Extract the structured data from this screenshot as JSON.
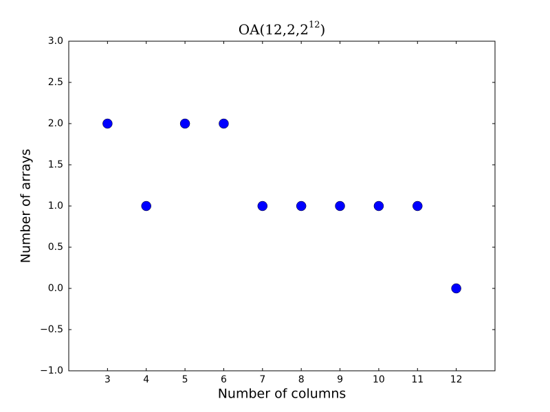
{
  "chart_data": {
    "type": "scatter",
    "title": {
      "text": "OA(12,2,2",
      "superscript": "12",
      "end": ")"
    },
    "xlabel": "Number of columns",
    "ylabel": "Number of arrays",
    "x": [
      3,
      4,
      5,
      6,
      7,
      8,
      9,
      10,
      11,
      12
    ],
    "values": [
      2,
      1,
      2,
      2,
      1,
      1,
      1,
      1,
      1,
      0
    ],
    "color": "#0000ff",
    "xlim": [
      2,
      13
    ],
    "xticks": [
      3,
      4,
      5,
      6,
      7,
      8,
      9,
      10,
      11,
      12
    ],
    "ylim": [
      -1,
      3
    ],
    "yticks": [
      {
        "value": -1,
        "label": "−1.0"
      },
      {
        "value": -0.5,
        "label": "−0.5"
      },
      {
        "value": 0,
        "label": "0.0"
      },
      {
        "value": 0.5,
        "label": "0.5"
      },
      {
        "value": 1,
        "label": "1.0"
      },
      {
        "value": 1.5,
        "label": "1.5"
      },
      {
        "value": 2,
        "label": "2.0"
      },
      {
        "value": 2.5,
        "label": "2.5"
      },
      {
        "value": 3,
        "label": "3.0"
      }
    ],
    "grid": false
  }
}
